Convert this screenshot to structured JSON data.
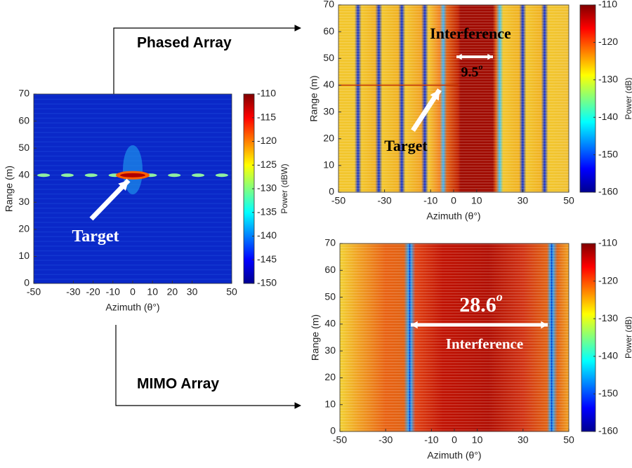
{
  "labels": [
    "Phased Array",
    "MIMO Array"
  ],
  "chart_data": [
    {
      "type": "heatmap",
      "xlabel": "Azimuth (θ°)",
      "ylabel": "Range (m)",
      "xlim": [
        -50,
        50
      ],
      "xticks": [
        -50,
        -30,
        -20,
        -10,
        0,
        10,
        20,
        30,
        50
      ],
      "ylim": [
        0,
        70
      ],
      "yticks": [
        0,
        10,
        20,
        30,
        40,
        50,
        60,
        70
      ],
      "clim": [
        -150,
        -110
      ],
      "cticks": [
        -150,
        -145,
        -140,
        -135,
        -130,
        -125,
        -120,
        -115,
        -110
      ],
      "clabel": "Power (dBW)",
      "colormap": "jet",
      "annotations": [
        {
          "text": "Target"
        }
      ]
    },
    {
      "type": "heatmap",
      "xlabel": "Azimuth (θ°)",
      "ylabel": "Range (m)",
      "xlim": [
        -50,
        50
      ],
      "xticks": [
        -50,
        -30,
        -10,
        0,
        10,
        30,
        50
      ],
      "ylim": [
        0,
        70
      ],
      "yticks": [
        0,
        10,
        20,
        30,
        40,
        50,
        60,
        70
      ],
      "clim": [
        -160,
        -110
      ],
      "cticks": [
        -160,
        -150,
        -140,
        -130,
        -120,
        -110
      ],
      "clabel": "Power (dB)",
      "colormap": "jet",
      "annotations": [
        {
          "text": "Interference"
        },
        {
          "text": "9.5",
          "sup": "o"
        },
        {
          "text": "Target"
        }
      ]
    },
    {
      "type": "heatmap",
      "xlabel": "Azimuth (θ°)",
      "ylabel": "Range (m)",
      "xlim": [
        -50,
        50
      ],
      "xticks": [
        -50,
        -30,
        -10,
        0,
        10,
        30,
        50
      ],
      "ylim": [
        0,
        70
      ],
      "yticks": [
        0,
        10,
        20,
        30,
        40,
        50,
        60,
        70
      ],
      "clim": [
        -160,
        -110
      ],
      "cticks": [
        -160,
        -150,
        -140,
        -130,
        -120,
        -110
      ],
      "clabel": "Power (dB)",
      "colormap": "jet",
      "annotations": [
        {
          "text": "28.6",
          "sup": "o"
        },
        {
          "text": "Interference"
        }
      ]
    }
  ]
}
